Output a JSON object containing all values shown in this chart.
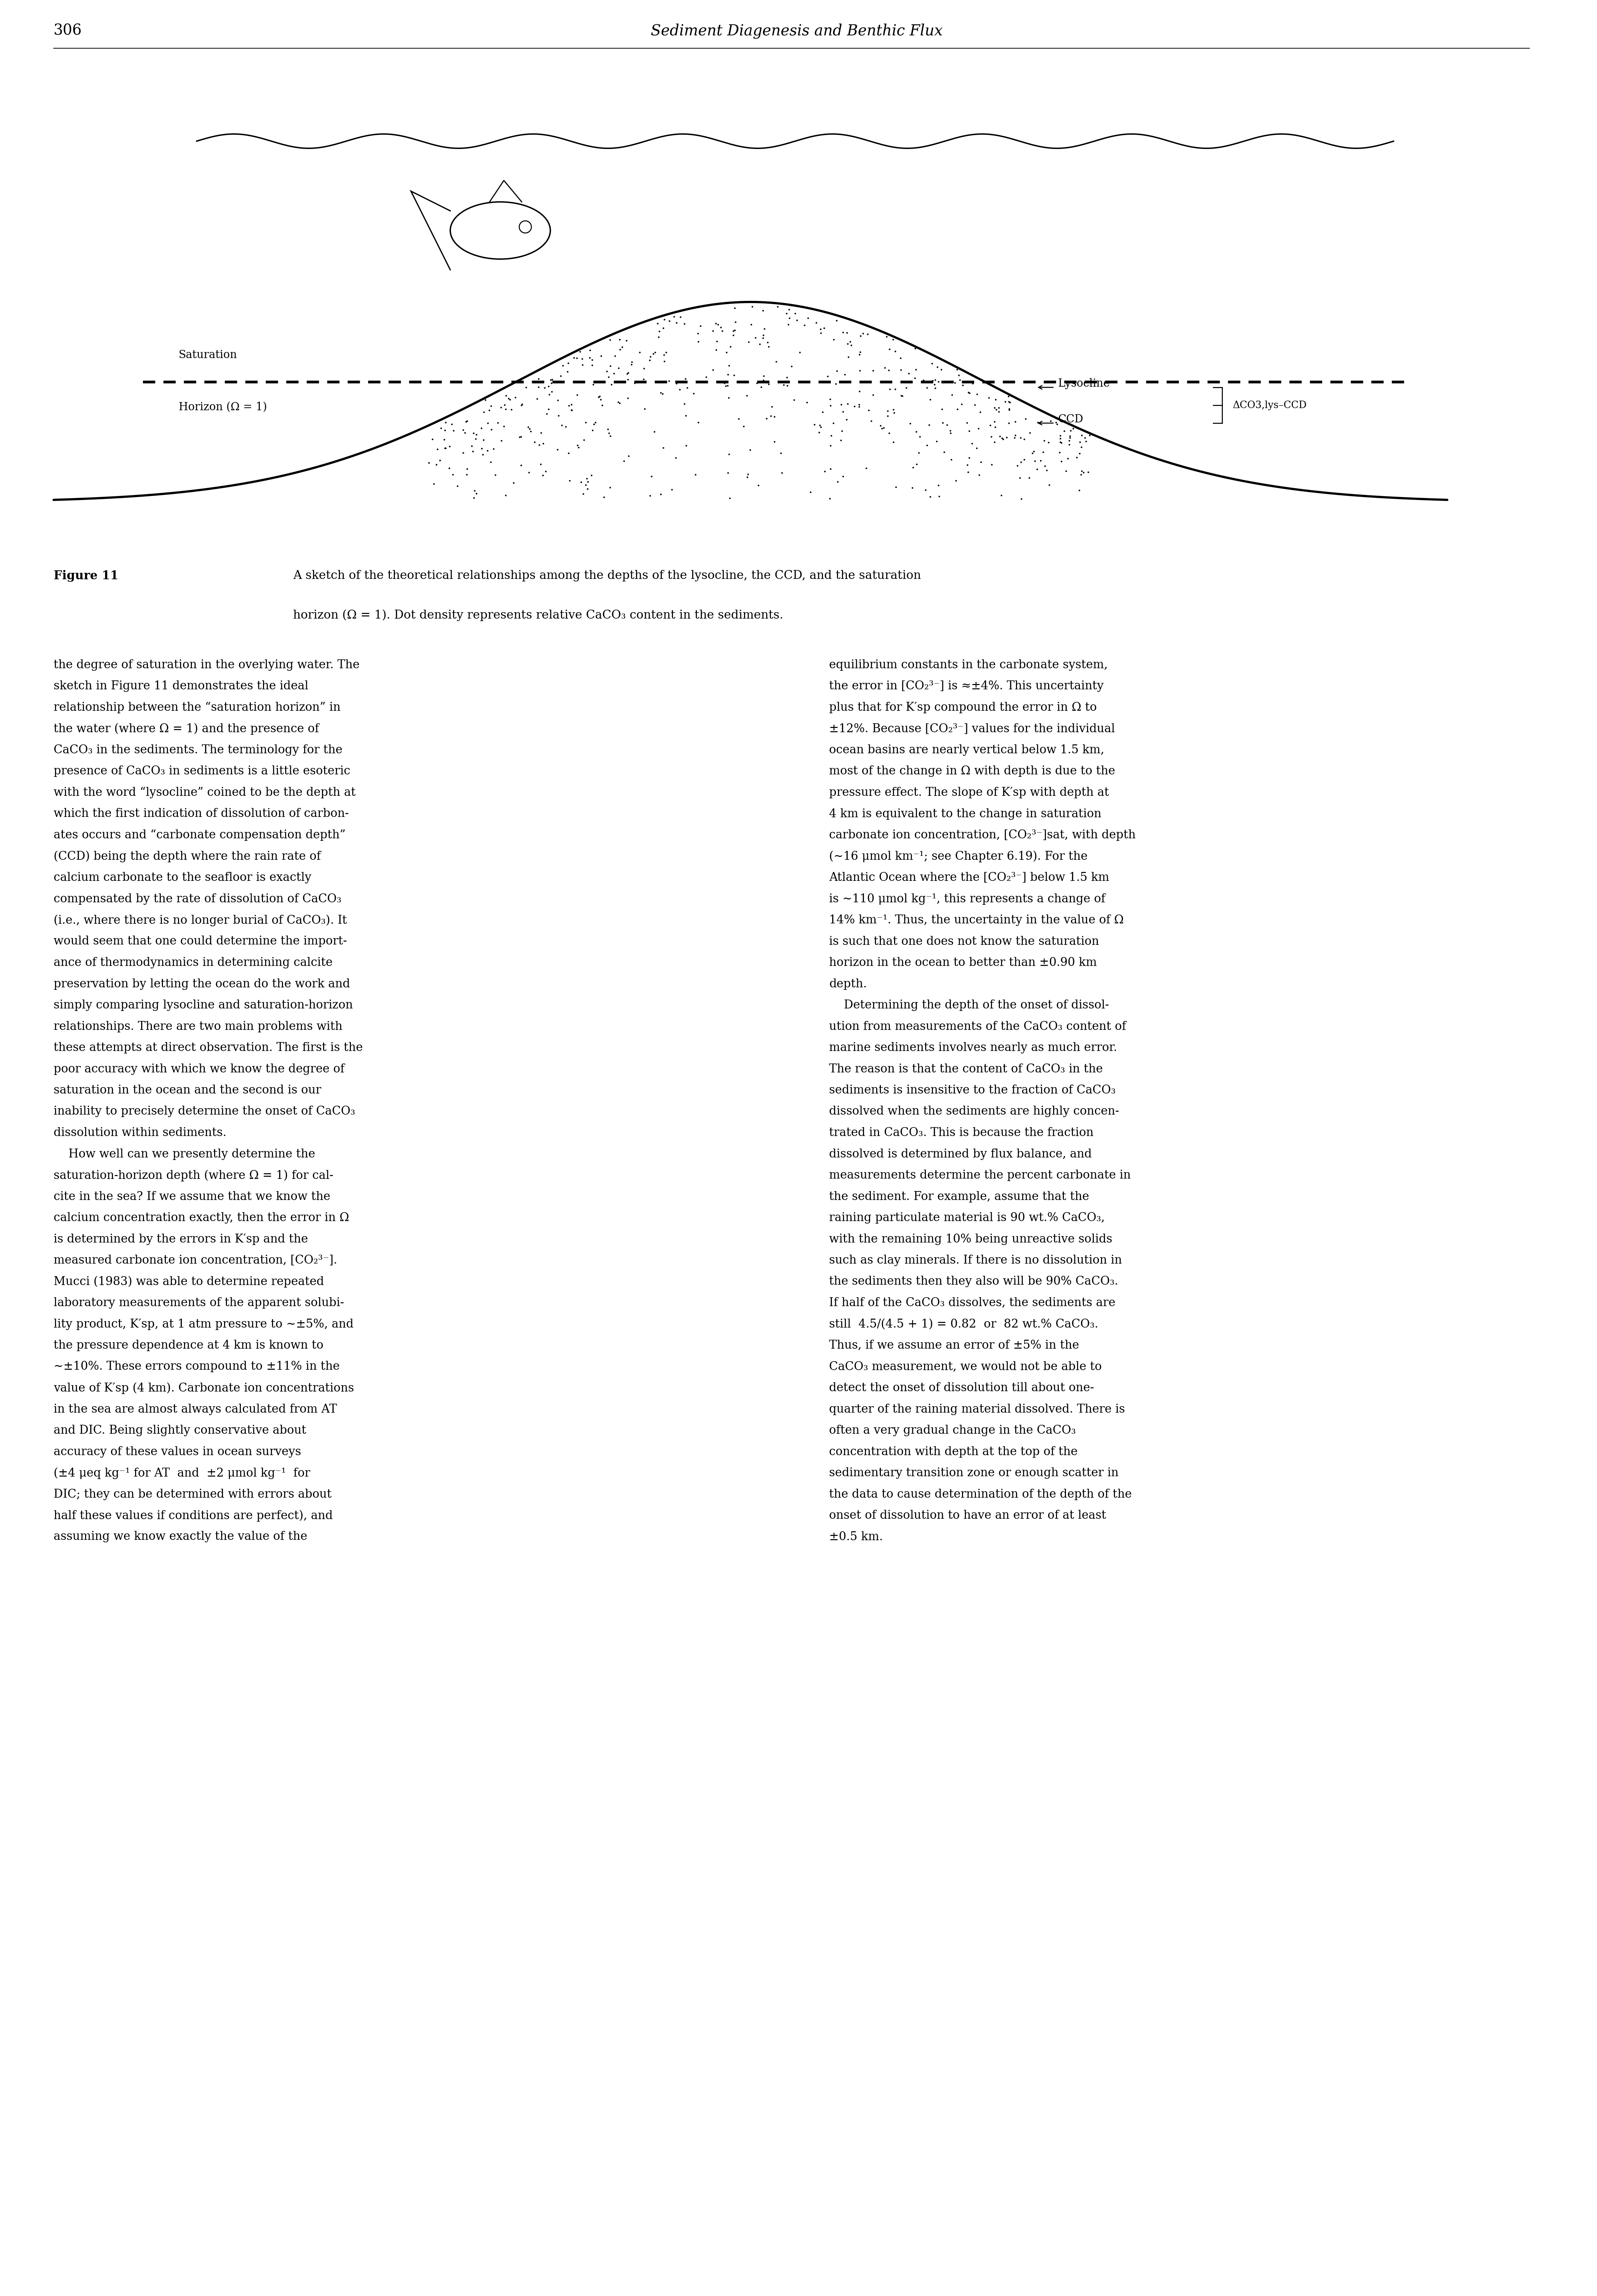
{
  "page_number": "306",
  "header_title": "Sediment Diagenesis and Benthic Flux",
  "saturation_label_line1": "Saturation",
  "saturation_label_line2": "Horizon (Ω = 1)",
  "lysocline_label": "←Lysocline",
  "ccd_label": "←CCD",
  "delta_label": "ΔCO3,lys–CCD",
  "fig_caption_bold": "Figure 11",
  "fig_caption_text1": "A sketch of the theoretical relationships among the depths of the lysocline, the CCD, and the saturation",
  "fig_caption_text2": "horizon (Ω = 1). Dot density represents relative CaCO₃ content in the sediments.",
  "bg_color": "#ffffff",
  "left_col_text": [
    "the degree of saturation in the overlying water. The",
    "sketch in Figure 11 demonstrates the ideal",
    "relationship between the “saturation horizon” in",
    "the water (where Ω = 1) and the presence of",
    "CaCO₃ in the sediments. The terminology for the",
    "presence of CaCO₃ in sediments is a little esoteric",
    "with the word “lysocline” coined to be the depth at",
    "which the first indication of dissolution of carbon-",
    "ates occurs and “carbonate compensation depth”",
    "(CCD) being the depth where the rain rate of",
    "calcium carbonate to the seafloor is exactly",
    "compensated by the rate of dissolution of CaCO₃",
    "(i.e., where there is no longer burial of CaCO₃). It",
    "would seem that one could determine the import-",
    "ance of thermodynamics in determining calcite",
    "preservation by letting the ocean do the work and",
    "simply comparing lysocline and saturation-horizon",
    "relationships. There are two main problems with",
    "these attempts at direct observation. The first is the",
    "poor accuracy with which we know the degree of",
    "saturation in the ocean and the second is our",
    "inability to precisely determine the onset of CaCO₃",
    "dissolution within sediments.",
    "    How well can we presently determine the",
    "saturation-horizon depth (where Ω = 1) for cal-",
    "cite in the sea? If we assume that we know the",
    "calcium concentration exactly, then the error in Ω",
    "is determined by the errors in K′sp and the",
    "measured carbonate ion concentration, [CO₂³⁻].",
    "Mucci (1983) was able to determine repeated",
    "laboratory measurements of the apparent solubi-",
    "lity product, K′sp, at 1 atm pressure to ~±5%, and",
    "the pressure dependence at 4 km is known to",
    "~±10%. These errors compound to ±11% in the",
    "value of K′sp (4 km). Carbonate ion concentrations",
    "in the sea are almost always calculated from AT",
    "and DIC. Being slightly conservative about",
    "accuracy of these values in ocean surveys",
    "(±4 μeq kg⁻¹ for AT  and  ±2 μmol kg⁻¹  for",
    "DIC; they can be determined with errors about",
    "half these values if conditions are perfect), and",
    "assuming we know exactly the value of the"
  ],
  "right_col_text": [
    "equilibrium constants in the carbonate system,",
    "the error in [CO₂³⁻] is ≈±4%. This uncertainty",
    "plus that for K′sp compound the error in Ω to",
    "±12%. Because [CO₂³⁻] values for the individual",
    "ocean basins are nearly vertical below 1.5 km,",
    "most of the change in Ω with depth is due to the",
    "pressure effect. The slope of K′sp with depth at",
    "4 km is equivalent to the change in saturation",
    "carbonate ion concentration, [CO₂³⁻]sat, with depth",
    "(∼16 μmol km⁻¹; see Chapter 6.19). For the",
    "Atlantic Ocean where the [CO₂³⁻] below 1.5 km",
    "is ∼110 μmol kg⁻¹, this represents a change of",
    "14% km⁻¹. Thus, the uncertainty in the value of Ω",
    "is such that one does not know the saturation",
    "horizon in the ocean to better than ±0.90 km",
    "depth.",
    "    Determining the depth of the onset of dissol-",
    "ution from measurements of the CaCO₃ content of",
    "marine sediments involves nearly as much error.",
    "The reason is that the content of CaCO₃ in the",
    "sediments is insensitive to the fraction of CaCO₃",
    "dissolved when the sediments are highly concen-",
    "trated in CaCO₃. This is because the fraction",
    "dissolved is determined by flux balance, and",
    "measurements determine the percent carbonate in",
    "the sediment. For example, assume that the",
    "raining particulate material is 90 wt.% CaCO₃,",
    "with the remaining 10% being unreactive solids",
    "such as clay minerals. If there is no dissolution in",
    "the sediments then they also will be 90% CaCO₃.",
    "If half of the CaCO₃ dissolves, the sediments are",
    "still  4.5/(4.5 + 1) = 0.82  or  82 wt.% CaCO₃.",
    "Thus, if we assume an error of ±5% in the",
    "CaCO₃ measurement, we would not be able to",
    "detect the onset of dissolution till about one-",
    "quarter of the raining material dissolved. There is",
    "often a very gradual change in the CaCO₃",
    "concentration with depth at the top of the",
    "sedimentary transition zone or enough scatter in",
    "the data to cause determination of the depth of the",
    "onset of dissolution to have an error of at least",
    "±0.5 km."
  ]
}
